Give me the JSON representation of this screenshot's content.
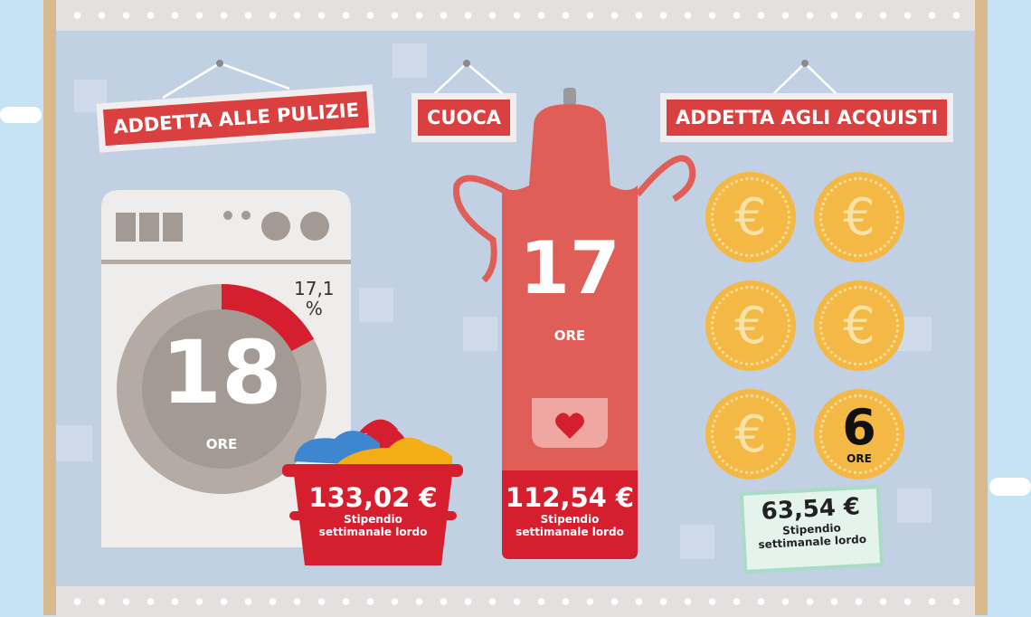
{
  "signs": {
    "cleaner": "ADDETTA ALLE PULIZIE",
    "cook": "CUOCA",
    "shopper": "ADDETTA AGLI ACQUISTI"
  },
  "cleaner": {
    "hours": "18",
    "hours_unit": "ORE",
    "percent": "17,1",
    "percent_sign": "%",
    "percent_value": 17.1,
    "salary": "133,02 €",
    "salary_label_1": "Stipendio",
    "salary_label_2": "settimanale lordo"
  },
  "cook": {
    "hours": "17",
    "hours_unit": "ORE",
    "salary": "112,54 €",
    "salary_label_1": "Stipendio",
    "salary_label_2": "settimanale lordo"
  },
  "shopper": {
    "hours": "6",
    "hours_unit": "ORE",
    "coin_symbol": "€",
    "salary": "63,54 €",
    "salary_label_1": "Stipendio",
    "salary_label_2": "settimanale lordo"
  },
  "colors": {
    "red": "#d9403f",
    "apron": "#e05e58",
    "coin": "#f4b844",
    "machine_ring": "#b3aba4",
    "receipt": "#a8dcc4"
  },
  "icons": [
    "washing-machine-icon",
    "laundry-basket-icon",
    "apron-icon",
    "heart-icon",
    "euro-coin-icon",
    "banknote-icon"
  ]
}
